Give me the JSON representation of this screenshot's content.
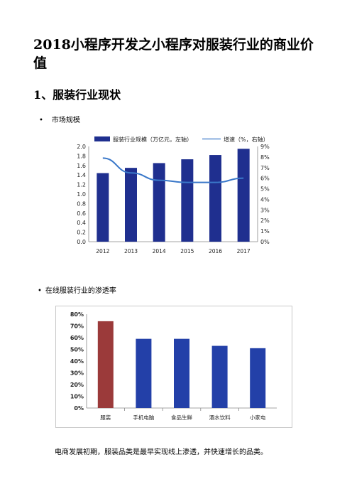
{
  "doc": {
    "title": "2018小程序开发之小程序对服装行业的商业价值",
    "section_heading": "1、服装行业现状",
    "bullet1": "市场规模",
    "bullet2": "在线服装行业的渗透率",
    "paragraph": "电商发展初期，服装品类是最早实现线上渗透，并快速增长的品类。",
    "bullet_glyph": "•"
  },
  "chart_data": [
    {
      "type": "bar+line",
      "categories": [
        "2012",
        "2013",
        "2014",
        "2015",
        "2016",
        "2017"
      ],
      "series": [
        {
          "name": "服装行业规模（万亿元，左轴）",
          "type": "bar",
          "axis": "left",
          "values": [
            1.44,
            1.55,
            1.65,
            1.73,
            1.82,
            1.95
          ],
          "color": "#1f2f8f"
        },
        {
          "name": "增速（%，右轴）",
          "type": "line",
          "axis": "right",
          "values": [
            7.9,
            6.5,
            5.8,
            5.6,
            5.6,
            6.0
          ],
          "color": "#3a78c9"
        }
      ],
      "ylim_left": [
        0,
        2.0
      ],
      "yticks_left": [
        "0.0",
        "0.2",
        "0.4",
        "0.6",
        "0.8",
        "1.0",
        "1.2",
        "1.4",
        "1.6",
        "1.8",
        "2.0"
      ],
      "ylim_right": [
        0,
        9
      ],
      "yticks_right": [
        "0%",
        "1%",
        "2%",
        "3%",
        "4%",
        "5%",
        "6%",
        "7%",
        "8%",
        "9%"
      ],
      "legend": "top",
      "grid": false
    },
    {
      "type": "bar",
      "categories": [
        "服装",
        "手机电脑",
        "食品生鲜",
        "酒水饮料",
        "小家电"
      ],
      "values": [
        74,
        59,
        59,
        53,
        51
      ],
      "colors": [
        "#9b3a3a",
        "#2340a8",
        "#2340a8",
        "#2340a8",
        "#2340a8"
      ],
      "ylim": [
        0,
        80
      ],
      "yticks": [
        "0%",
        "10%",
        "20%",
        "30%",
        "40%",
        "50%",
        "60%",
        "70%",
        "80%"
      ],
      "grid": false
    }
  ]
}
